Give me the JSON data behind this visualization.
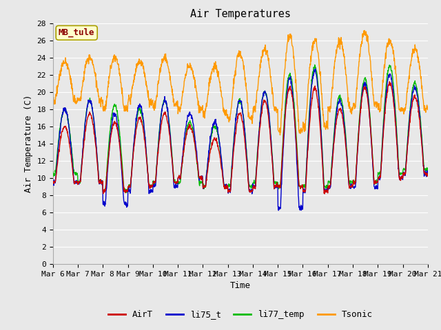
{
  "title": "Air Temperatures",
  "ylabel": "Air Temperature (C)",
  "xlabel": "Time",
  "annotation": "MB_tule",
  "ylim": [
    0,
    28
  ],
  "yticks": [
    0,
    2,
    4,
    6,
    8,
    10,
    12,
    14,
    16,
    18,
    20,
    22,
    24,
    26,
    28
  ],
  "n_days": 15,
  "xtick_labels": [
    "Mar 6",
    "Mar 7",
    "Mar 8",
    "Mar 9",
    "Mar 10",
    "Mar 11",
    "Mar 12",
    "Mar 13",
    "Mar 14",
    "Mar 15",
    "Mar 16",
    "Mar 17",
    "Mar 18",
    "Mar 19",
    "Mar 20",
    "Mar 21"
  ],
  "colors": {
    "AirT": "#cc0000",
    "li75_t": "#0000cc",
    "li77_temp": "#00bb00",
    "Tsonic": "#ff9900"
  },
  "legend_labels": [
    "AirT",
    "li75_t",
    "li77_temp",
    "Tsonic"
  ],
  "fig_bg_color": "#e8e8e8",
  "plot_bg_color": "#e8e8e8",
  "title_fontsize": 11,
  "axis_label_fontsize": 9,
  "tick_fontsize": 8,
  "linewidth": 1.0,
  "night_temps_air": [
    9.5,
    9.5,
    8.5,
    9.0,
    9.5,
    10.0,
    9.0,
    8.5,
    9.0,
    9.0,
    8.5,
    9.0,
    9.5,
    10.0,
    10.5
  ],
  "day_amps_air": [
    6.5,
    8.0,
    8.0,
    8.0,
    8.0,
    6.0,
    5.5,
    9.0,
    10.0,
    11.5,
    12.0,
    9.0,
    11.0,
    11.0,
    9.0
  ],
  "night_temps_li75": [
    9.5,
    9.5,
    7.0,
    8.5,
    9.0,
    10.0,
    9.0,
    8.5,
    9.0,
    6.5,
    8.5,
    9.0,
    9.0,
    10.0,
    10.5
  ],
  "day_amps_li75": [
    8.5,
    9.5,
    10.5,
    10.0,
    10.0,
    7.5,
    7.5,
    10.5,
    11.0,
    15.0,
    14.0,
    10.0,
    12.0,
    12.0,
    10.0
  ],
  "night_temps_li77": [
    10.5,
    9.5,
    8.5,
    9.0,
    9.5,
    9.5,
    9.0,
    9.0,
    9.5,
    9.0,
    9.0,
    9.5,
    9.5,
    10.5,
    11.0
  ],
  "day_amps_li77": [
    7.5,
    9.5,
    10.0,
    9.0,
    9.5,
    7.0,
    7.0,
    10.0,
    10.5,
    13.0,
    14.0,
    10.0,
    12.0,
    12.5,
    10.0
  ],
  "night_temps_ts": [
    19.0,
    19.0,
    18.0,
    19.0,
    18.5,
    18.0,
    17.5,
    17.0,
    18.0,
    15.5,
    16.0,
    18.0,
    18.5,
    18.0,
    18.0
  ],
  "day_amps_ts": [
    4.5,
    5.0,
    6.0,
    4.5,
    5.5,
    5.0,
    5.5,
    7.5,
    7.0,
    11.0,
    10.0,
    8.0,
    8.5,
    8.0,
    7.0
  ]
}
